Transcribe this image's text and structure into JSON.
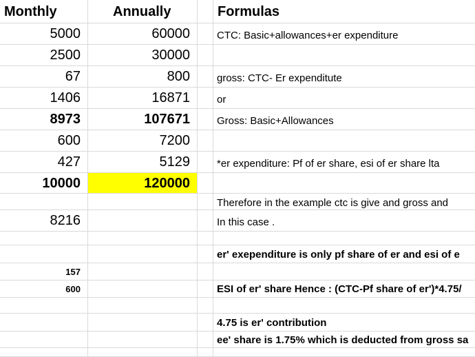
{
  "headers": {
    "monthly": "Monthly",
    "annually": "Annually",
    "formulas": "Formulas"
  },
  "rows": [
    {
      "monthly": "5000",
      "annually": "60000",
      "formula": "CTC: Basic+allowances+er expenditure"
    },
    {
      "monthly": "2500",
      "annually": "30000",
      "formula": ""
    },
    {
      "monthly": "67",
      "annually": "800",
      "formula": "gross: CTC- Er expenditute"
    },
    {
      "monthly": "1406",
      "annually": "16871",
      "formula": "or"
    },
    {
      "monthly": "8973",
      "annually": "107671",
      "formula": "Gross: Basic+Allowances"
    },
    {
      "monthly": "600",
      "annually": "7200",
      "formula": ""
    },
    {
      "monthly": "427",
      "annually": "5129",
      "formula": "*er expenditure: Pf of er share, esi of er share lta"
    },
    {
      "monthly": "10000",
      "annually": "120000",
      "formula": ""
    },
    {
      "monthly": "",
      "annually": "",
      "formula": "Therefore in the example ctc is give and gross and"
    },
    {
      "monthly": "8216",
      "annually": "",
      "formula": "In this case ."
    },
    {
      "monthly": "",
      "annually": "",
      "formula": ""
    },
    {
      "monthly": "",
      "annually": "",
      "formula": "er' exependiture is only pf share of er and esi of e"
    },
    {
      "monthly": "157",
      "annually": "",
      "formula": ""
    },
    {
      "monthly": "600",
      "annually": "",
      "formula": "ESI of er' share Hence : (CTC-Pf share of er')*4.75/"
    },
    {
      "monthly": "",
      "annually": "",
      "formula": ""
    },
    {
      "monthly": "",
      "annually": "",
      "formula": "4.75 is er' contribution"
    },
    {
      "monthly": "",
      "annually": "",
      "formula": "ee' share is 1.75% which is deducted from gross sa"
    }
  ],
  "colors": {
    "highlight": "#ffff00",
    "gridline": "#d9d9d9"
  }
}
